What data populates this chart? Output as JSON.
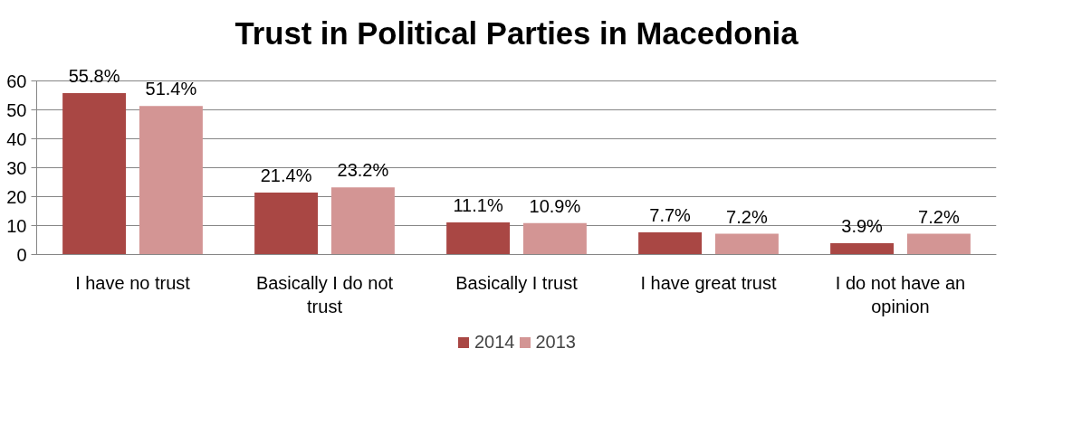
{
  "chart_data": {
    "type": "bar",
    "title": "Trust in Political Parties in Macedonia",
    "categories": [
      "I have no trust",
      "Basically I do not trust",
      "Basically I trust",
      "I have great trust",
      "I do not have an opinion"
    ],
    "series": [
      {
        "name": "2014",
        "color": "#a94744",
        "values": [
          55.8,
          21.4,
          11.1,
          7.7,
          3.9
        ],
        "value_labels": [
          "55.8%",
          "21.4%",
          "11.1%",
          "7.7%",
          "3.9%"
        ]
      },
      {
        "name": "2013",
        "color": "#d39594",
        "values": [
          51.4,
          23.2,
          10.9,
          7.2,
          7.2
        ],
        "value_labels": [
          "51.4%",
          "23.2%",
          "10.9%",
          "7.2%",
          "7.2%"
        ]
      }
    ],
    "ylim": [
      0,
      60
    ],
    "yticks": [
      0,
      10,
      20,
      30,
      40,
      50,
      60
    ],
    "grid": "y",
    "legend": "bottom"
  }
}
